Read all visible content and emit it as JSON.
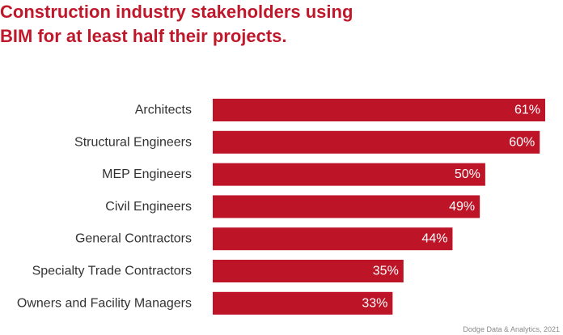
{
  "header": {
    "title_line1": "Construction industry stakeholders using",
    "title_line2": "BIM for at least half their projects."
  },
  "footer": {
    "source": "Dodge Data & Analytics, 2021"
  },
  "colors": {
    "bar": "#bd1527",
    "title": "#c0182b"
  },
  "chart_data": {
    "type": "bar",
    "orientation": "horizontal",
    "title": "Construction industry stakeholders using BIM for at least half their projects.",
    "categories": [
      "Architects",
      "Structural Engineers",
      "MEP Engineers",
      "Civil Engineers",
      "General Contractors",
      "Specialty Trade Contractors",
      "Owners and Facility Managers"
    ],
    "values": [
      61,
      60,
      50,
      49,
      44,
      35,
      33
    ],
    "value_labels": [
      "61%",
      "60%",
      "50%",
      "49%",
      "44%",
      "35%",
      "33%"
    ],
    "xlabel": "",
    "ylabel": "",
    "unit": "%",
    "xlim": [
      0,
      61
    ],
    "grid": false,
    "legend": "none"
  }
}
